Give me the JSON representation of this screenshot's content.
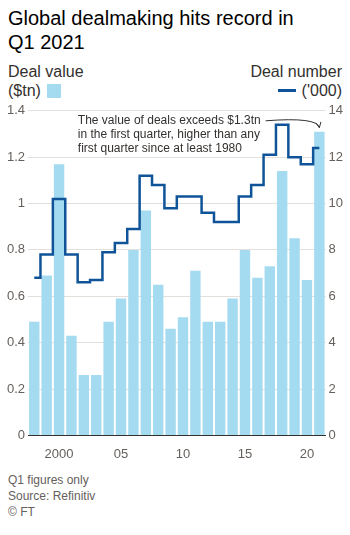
{
  "chart_data": {
    "type": "bar",
    "title": "Global dealmaking hits record in Q1 2021",
    "categories": [
      null,
      null,
      "2000",
      null,
      null,
      null,
      null,
      "05",
      null,
      null,
      null,
      null,
      "10",
      null,
      null,
      null,
      null,
      "15",
      null,
      null,
      null,
      null,
      "20",
      null
    ],
    "series": [
      {
        "name": "Deal value ($tn)",
        "type": "bar",
        "color": "#a5dbf0",
        "values": [
          0.49,
          0.69,
          1.17,
          0.43,
          0.26,
          0.26,
          0.49,
          0.59,
          0.8,
          0.97,
          0.65,
          0.46,
          0.51,
          0.71,
          0.49,
          0.49,
          0.59,
          0.8,
          0.68,
          0.73,
          1.14,
          0.85,
          0.67,
          1.31
        ]
      },
      {
        "name": "Deal number ('000)",
        "type": "line",
        "axis": "y2",
        "line_style": "stepped",
        "color": "#0f5499",
        "values": [
          6.8,
          7.8,
          10.2,
          7.8,
          6.6,
          6.7,
          7.9,
          8.3,
          8.9,
          11.2,
          10.8,
          9.8,
          10.3,
          10.3,
          9.6,
          9.2,
          9.2,
          10.3,
          10.8,
          12.1,
          13.4,
          12.0,
          11.7,
          12.4
        ]
      }
    ],
    "ylim": [
      0,
      1.4
    ],
    "yticks": [
      0,
      0.2,
      0.4,
      0.6,
      0.8,
      1.0,
      1.2,
      1.4
    ],
    "y2lim": [
      0,
      14
    ],
    "y2ticks": [
      0,
      2,
      4,
      6,
      8,
      10,
      12,
      14
    ],
    "grid": true,
    "annotation": "The value of deals exceeds $1.3tn in the first quarter, higher than any first quarter since at least 1980",
    "footnote": "Q1 figures only",
    "source": "Source: Refinitiv",
    "credit": "© FT"
  }
}
